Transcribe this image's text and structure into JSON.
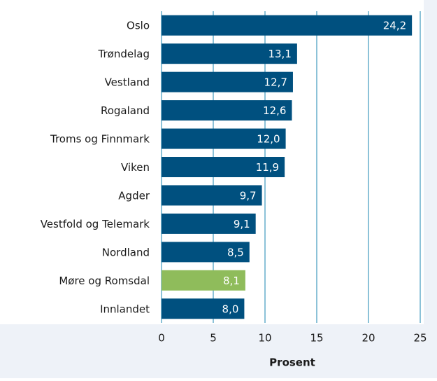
{
  "chart_data": {
    "type": "barh",
    "categories": [
      "Oslo",
      "Trøndelag",
      "Vestland",
      "Rogaland",
      "Troms og Finnmark",
      "Viken",
      "Agder",
      "Vestfold og Telemark",
      "Nordland",
      "Møre og Romsdal",
      "Innlandet"
    ],
    "values": [
      24.2,
      13.1,
      12.7,
      12.6,
      12.0,
      11.9,
      9.7,
      9.1,
      8.5,
      8.1,
      8.0
    ],
    "value_labels": [
      "24,2",
      "13,1",
      "12,7",
      "12,6",
      "12,0",
      "11,9",
      "9,7",
      "9,1",
      "8,5",
      "8,1",
      "8,0"
    ],
    "colors": [
      "#00507f",
      "#00507f",
      "#00507f",
      "#00507f",
      "#00507f",
      "#00507f",
      "#00507f",
      "#00507f",
      "#00507f",
      "#8fbc5b",
      "#00507f"
    ],
    "xlabel": "Prosent",
    "xlim": [
      0,
      25
    ],
    "xticks": [
      0,
      5,
      10,
      15,
      20,
      25
    ],
    "grid": true
  }
}
